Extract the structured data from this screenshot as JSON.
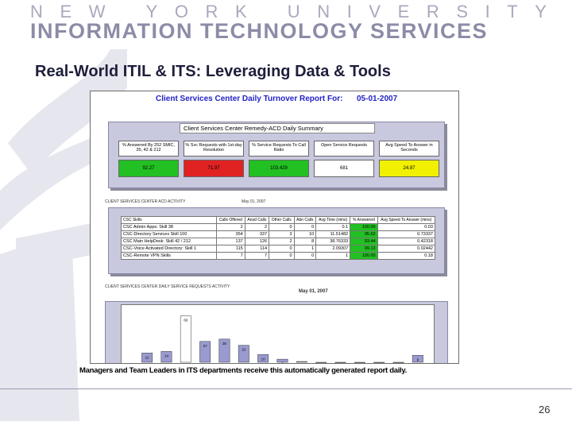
{
  "banner": {
    "line1_letters": [
      "N",
      "E",
      "W",
      "Y",
      "O",
      "R",
      "K",
      "U",
      "N",
      "I",
      "V",
      "E",
      "R",
      "S",
      "I",
      "T",
      "Y"
    ],
    "line2": "INFORMATION TECHNOLOGY SERVICES"
  },
  "slide": {
    "title": "Real-World ITIL & ITS: Leveraging Data & Tools",
    "caption": "Managers and Team Leaders in ITS departments receive this automatically generated report daily.",
    "page_number": "26"
  },
  "report": {
    "title": "Client Services Center Daily Turnover Report For:",
    "date": "05-01-2007",
    "summary": {
      "header": "Client Services Center Remedy-ACD Daily Summary",
      "metrics": [
        {
          "label": "% Answered By 252 SMIC, 35, 42 & 212",
          "value": "92.27",
          "color": "#22c022"
        },
        {
          "label": "% Svc Requests with 1st-day Resolution",
          "value": "71.97",
          "color": "#e02222"
        },
        {
          "label": "% Service Requests To Call Ratio",
          "value": "103.429",
          "color": "#22c022"
        },
        {
          "label": "Open Service Requests",
          "value": "681",
          "color": "#ffffff"
        },
        {
          "label": "Avg Speed To Answer in Seconds",
          "value": "24.87",
          "color": "#f0f000"
        }
      ]
    },
    "skills_caption": "CLIENT SERVICES CENTER ACD ACTIVITY",
    "skills_date": "May 01, 2007",
    "skills": {
      "headers": [
        "CSC Skills",
        "Calls Offered",
        "Ansd Calls",
        "Other Calls",
        "Abn Calls",
        "Avg Time (mins)",
        "% Answered",
        "Avg Speed To Answer (mins)"
      ],
      "rows": [
        [
          "CSC Admin Apps: Skill 38",
          "2",
          "2",
          "0",
          "0",
          "0.1",
          "100.00",
          "0.03"
        ],
        [
          "CSC-Directory Services Skill 100",
          "354",
          "337",
          "3",
          "10",
          "11.51482",
          "95.62",
          "0.73337"
        ],
        [
          "CSC Main HelpDesk: Skill 42 / 212",
          "137",
          "126",
          "2",
          "8",
          "38.76333",
          "93.44",
          "0.42318"
        ],
        [
          "CSC-Voice Activated Directory: Skill 1",
          "115",
          "114",
          "0",
          "1",
          "2.09307",
          "99.13",
          "0.02442"
        ],
        [
          "CSC-Remote VPN Skills",
          "7",
          "7",
          "0",
          "0",
          "1",
          "100.00",
          "0.18"
        ]
      ]
    },
    "chart_caption": "CLIENT SERVICES CENTER DAILY SERVICE REQUESTS ACTIVITY",
    "chart_date": "May 01, 2007"
  },
  "chart_data": {
    "type": "bar",
    "values": [
      12,
      14,
      60,
      27,
      30,
      22,
      10,
      4,
      1,
      0,
      0,
      0,
      0,
      0,
      9
    ],
    "labels": [
      "12",
      "14",
      "60",
      "27",
      "30",
      "22",
      "10",
      "4",
      "1",
      "",
      "",
      "",
      "",
      "",
      "9"
    ],
    "ylim": [
      0,
      70
    ]
  },
  "colors": {
    "banner_text": "#8c8ca8",
    "title": "#1e1e3c",
    "report_blue": "#2323c8"
  }
}
